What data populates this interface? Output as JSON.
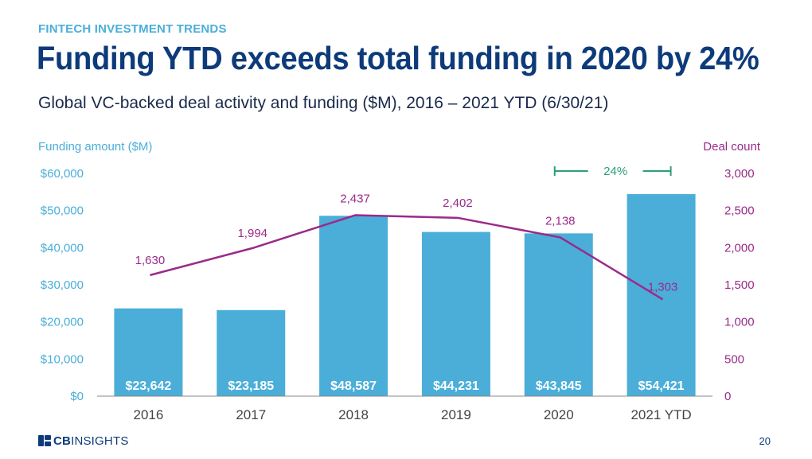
{
  "header": {
    "kicker": "FINTECH INVESTMENT TRENDS",
    "title": "Funding YTD exceeds total funding in 2020 by 24%",
    "subtitle": "Global VC-backed deal activity and funding ($M), 2016 – 2021 YTD (6/30/21)"
  },
  "footer": {
    "logo_bold": "CB",
    "logo_rest": "INSIGHTS",
    "page_number": "20"
  },
  "colors": {
    "bar": "#4aaed9",
    "line": "#9b2a8a",
    "left_axis": "#4aaed9",
    "right_axis": "#9b2a8a",
    "annotation": "#2e9e7a",
    "title": "#0d3b7a"
  },
  "chart_data": {
    "type": "bar",
    "categories": [
      "2016",
      "2017",
      "2018",
      "2019",
      "2020",
      "2021 YTD"
    ],
    "series": [
      {
        "name": "Funding amount ($M)",
        "type": "bar",
        "axis": "left",
        "values": [
          23642,
          23185,
          48587,
          44231,
          43845,
          54421
        ],
        "labels": [
          "$23,642",
          "$23,185",
          "$48,587",
          "$44,231",
          "$43,845",
          "$54,421"
        ]
      },
      {
        "name": "Deal count",
        "type": "line",
        "axis": "right",
        "values": [
          1630,
          1994,
          2437,
          2402,
          2138,
          1303
        ],
        "labels": [
          "1,630",
          "1,994",
          "2,437",
          "2,402",
          "2,138",
          "1,303"
        ]
      }
    ],
    "ylabel_left": "Funding amount ($M)",
    "ylabel_right": "Deal count",
    "ylim_left": [
      0,
      60000
    ],
    "ylim_right": [
      0,
      3000
    ],
    "yticks_left": [
      "$0",
      "$10,000",
      "$20,000",
      "$30,000",
      "$40,000",
      "$50,000",
      "$60,000"
    ],
    "yticks_right": [
      "0",
      "500",
      "1,000",
      "1,500",
      "2,000",
      "2,500",
      "3,000"
    ],
    "annotation": {
      "text": "24%",
      "from": "2020",
      "to": "2021 YTD"
    },
    "grid": false
  }
}
